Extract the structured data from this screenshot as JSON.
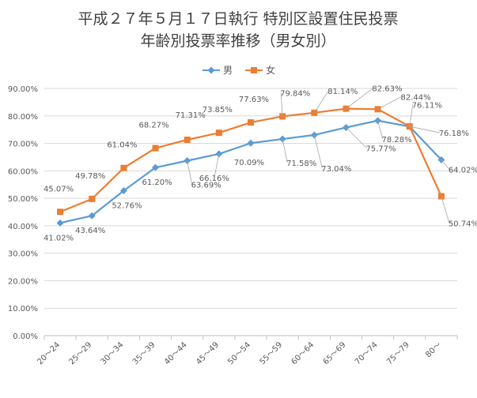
{
  "chart_data": {
    "type": "line",
    "title_lines": [
      "平成２７年５月１７日執行 特別区設置住民投票",
      "年齢別投票率推移（男女別）"
    ],
    "categories": [
      "20～24",
      "25～29",
      "30～34",
      "35～39",
      "40～44",
      "45～49",
      "50～54",
      "55～59",
      "60～64",
      "65～69",
      "70～74",
      "75～79",
      "80～"
    ],
    "yticks": [
      "0.00%",
      "10.00%",
      "20.00%",
      "30.00%",
      "40.00%",
      "50.00%",
      "60.00%",
      "70.00%",
      "80.00%",
      "90.00%"
    ],
    "ylim": [
      0,
      90
    ],
    "grid": true,
    "legend_position": "top",
    "series": [
      {
        "name": "男",
        "color": "#5b9bd5",
        "marker": "diamond",
        "values": [
          41.02,
          43.64,
          52.76,
          61.2,
          63.69,
          66.16,
          70.09,
          71.58,
          73.04,
          75.77,
          78.28,
          76.11,
          64.02
        ],
        "labels": [
          "41.02%",
          "43.64%",
          "52.76%",
          "61.20%",
          "63.69%",
          "66.16%",
          "70.09%",
          "71.58%",
          "73.04%",
          "75.77%",
          "78.28%",
          "76.11%",
          "64.02%"
        ]
      },
      {
        "name": "女",
        "color": "#ed7d31",
        "marker": "square",
        "values": [
          45.07,
          49.78,
          61.04,
          68.27,
          71.31,
          73.85,
          77.63,
          79.84,
          81.14,
          82.63,
          82.44,
          76.18,
          50.74
        ],
        "labels": [
          "45.07%",
          "49.78%",
          "61.04%",
          "68.27%",
          "71.31%",
          "73.85%",
          "77.63%",
          "79.84%",
          "81.14%",
          "82.63%",
          "82.44%",
          "76.18%",
          "50.74%"
        ]
      }
    ]
  }
}
